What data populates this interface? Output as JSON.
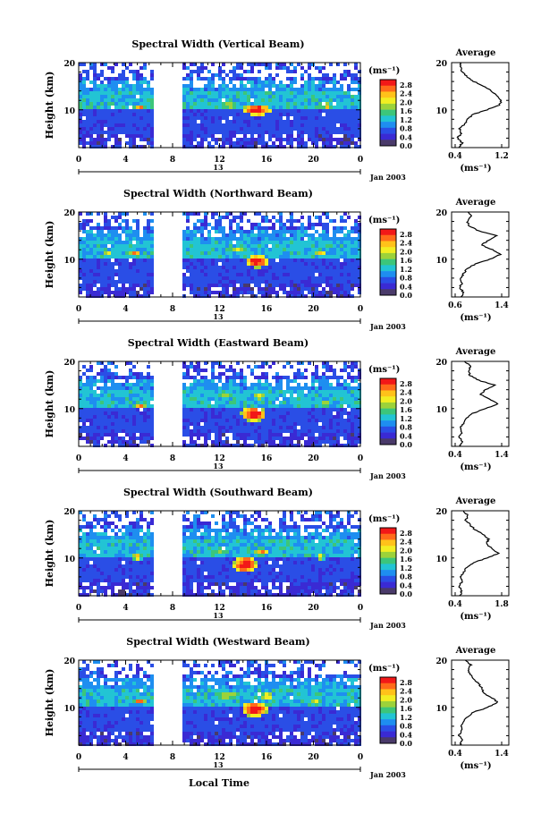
{
  "date_label": "Jan 2003",
  "day_label": "13",
  "xaxis_title": "Local Time",
  "ylabel": "Height (km)",
  "unit_label": "(ms⁻¹)",
  "average_title": "Average",
  "average_unit": "(ms⁻¹)",
  "colorbar_ticks": [
    "2.8",
    "2.4",
    "2.0",
    "1.6",
    "1.2",
    "0.8",
    "0.4",
    "0.0"
  ],
  "colorbar_colors": [
    "#f21818",
    "#ff6a1a",
    "#ffc21a",
    "#f2ee22",
    "#9cd23a",
    "#3cc67a",
    "#22c4d4",
    "#1e8ef0",
    "#2a4ee6",
    "#3a2ad4",
    "#4a3a6a"
  ],
  "chart_data": [
    {
      "type": "heatmap",
      "title": "Spectral Width (Vertical Beam)",
      "xlim": [
        0,
        24
      ],
      "x_ticks": [
        "0",
        "4",
        "8",
        "12",
        "16",
        "20",
        "0"
      ],
      "ylim": [
        2,
        20
      ],
      "y_ticks": [
        "20",
        "10"
      ],
      "zlim": [
        0.0,
        2.8
      ],
      "data_gap_hours": [
        6.3,
        8.8
      ],
      "average_profile": {
        "xlim": [
          0.4,
          1.2
        ],
        "x_ticks": [
          "0.4",
          "1.2"
        ],
        "ylim": [
          2,
          20
        ],
        "y_ticks": [
          "20",
          "10"
        ],
        "height_km": [
          2,
          3,
          4,
          5,
          6,
          7,
          8,
          9,
          10,
          11,
          12,
          13,
          14,
          15,
          16,
          17,
          18,
          19,
          20
        ],
        "values": [
          0.46,
          0.52,
          0.44,
          0.5,
          0.48,
          0.56,
          0.62,
          0.7,
          0.95,
          1.15,
          1.2,
          1.12,
          1.02,
          0.9,
          0.72,
          0.6,
          0.52,
          0.5,
          0.48
        ]
      }
    },
    {
      "type": "heatmap",
      "title": "Spectral Width (Northward Beam)",
      "xlim": [
        0,
        24
      ],
      "x_ticks": [
        "0",
        "4",
        "8",
        "12",
        "16",
        "20",
        "0"
      ],
      "ylim": [
        2,
        20
      ],
      "y_ticks": [
        "20",
        "10"
      ],
      "zlim": [
        0.0,
        2.8
      ],
      "data_gap_hours": [
        6.3,
        8.8
      ],
      "average_profile": {
        "xlim": [
          0.6,
          1.4
        ],
        "x_ticks": [
          "0.6",
          "1.4"
        ],
        "ylim": [
          2,
          20
        ],
        "y_ticks": [
          "20",
          "10"
        ],
        "height_km": [
          2,
          3,
          4,
          5,
          6,
          7,
          8,
          9,
          10,
          11,
          12,
          13,
          14,
          15,
          16,
          17,
          18,
          19,
          20
        ],
        "values": [
          0.7,
          0.74,
          0.68,
          0.72,
          0.7,
          0.75,
          0.8,
          0.95,
          1.2,
          1.38,
          1.25,
          1.05,
          1.18,
          1.32,
          1.0,
          0.85,
          0.8,
          0.88,
          0.82
        ]
      }
    },
    {
      "type": "heatmap",
      "title": "Spectral Width (Eastward Beam)",
      "xlim": [
        0,
        24
      ],
      "x_ticks": [
        "0",
        "4",
        "8",
        "12",
        "16",
        "20",
        "0"
      ],
      "ylim": [
        2,
        20
      ],
      "y_ticks": [
        "20",
        "10"
      ],
      "zlim": [
        0.0,
        2.8
      ],
      "data_gap_hours": [
        6.3,
        8.8
      ],
      "average_profile": {
        "xlim": [
          0.4,
          1.4
        ],
        "x_ticks": [
          "0.4",
          "1.4"
        ],
        "ylim": [
          2,
          20
        ],
        "y_ticks": [
          "20",
          "10"
        ],
        "height_km": [
          2,
          3,
          4,
          5,
          6,
          7,
          8,
          9,
          10,
          11,
          12,
          13,
          14,
          15,
          16,
          17,
          18,
          19,
          20
        ],
        "values": [
          0.5,
          0.56,
          0.48,
          0.55,
          0.52,
          0.58,
          0.65,
          0.78,
          1.05,
          1.32,
          1.15,
          0.95,
          1.05,
          1.25,
          0.9,
          0.72,
          0.68,
          0.75,
          0.6
        ]
      }
    },
    {
      "type": "heatmap",
      "title": "Spectral Width (Southward Beam)",
      "xlim": [
        0,
        24
      ],
      "x_ticks": [
        "0",
        "4",
        "8",
        "12",
        "16",
        "20",
        "0"
      ],
      "ylim": [
        2,
        20
      ],
      "y_ticks": [
        "20",
        "10"
      ],
      "zlim": [
        0.0,
        2.8
      ],
      "data_gap_hours": [
        6.3,
        8.8
      ],
      "average_profile": {
        "xlim": [
          0.4,
          1.8
        ],
        "x_ticks": [
          "0.4",
          "1.8"
        ],
        "ylim": [
          2,
          20
        ],
        "y_ticks": [
          "20",
          "10"
        ],
        "height_km": [
          2,
          3,
          4,
          5,
          6,
          7,
          8,
          9,
          10,
          11,
          12,
          13,
          14,
          15,
          16,
          17,
          18,
          19,
          20
        ],
        "values": [
          0.55,
          0.6,
          0.52,
          0.6,
          0.58,
          0.65,
          0.75,
          0.95,
          1.35,
          1.7,
          1.5,
          1.35,
          1.4,
          1.25,
          1.0,
          0.85,
          0.72,
          0.78,
          0.65
        ]
      }
    },
    {
      "type": "heatmap",
      "title": "Spectral Width (Westward Beam)",
      "xlim": [
        0,
        24
      ],
      "x_ticks": [
        "0",
        "4",
        "8",
        "12",
        "16",
        "20",
        "0"
      ],
      "ylim": [
        2,
        20
      ],
      "y_ticks": [
        "20",
        "10"
      ],
      "zlim": [
        0.0,
        2.8
      ],
      "data_gap_hours": [
        6.3,
        8.8
      ],
      "average_profile": {
        "xlim": [
          0.4,
          1.4
        ],
        "x_ticks": [
          "0.4",
          "1.4"
        ],
        "ylim": [
          2,
          20
        ],
        "y_ticks": [
          "20",
          "10"
        ],
        "height_km": [
          2,
          3,
          4,
          5,
          6,
          7,
          8,
          9,
          10,
          11,
          12,
          13,
          14,
          15,
          16,
          17,
          18,
          19,
          20
        ],
        "values": [
          0.5,
          0.55,
          0.48,
          0.54,
          0.52,
          0.58,
          0.66,
          0.8,
          1.1,
          1.32,
          1.2,
          1.02,
          0.98,
          0.9,
          0.8,
          0.72,
          0.68,
          0.74,
          0.62
        ]
      }
    }
  ]
}
